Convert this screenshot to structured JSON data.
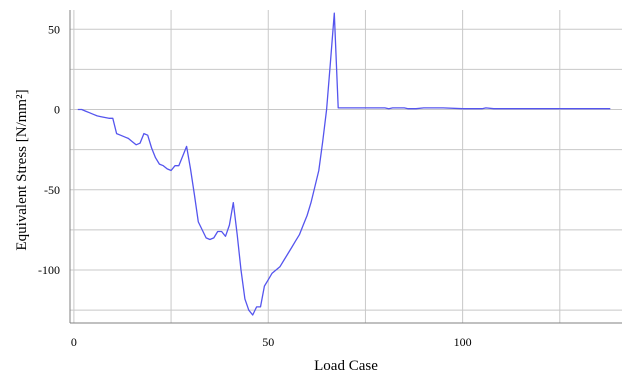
{
  "chart_data": {
    "type": "line",
    "title": "",
    "xlabel": "Load Case",
    "ylabel": "Equivalent Stress [N/mm²]",
    "xlim": [
      -1,
      141
    ],
    "ylim": [
      -133,
      62
    ],
    "x_ticks": [
      0,
      50,
      100
    ],
    "y_ticks": [
      50,
      0,
      -50,
      -100
    ],
    "x_minor_ticks": [
      25,
      75,
      125
    ],
    "y_minor_ticks": [
      25,
      -25,
      -75,
      -125
    ],
    "grid": true,
    "legend": "none",
    "colors": {
      "line": "#5555ee",
      "grid": "#c8c8c8",
      "axis": "#808080",
      "background": "#ffffff"
    },
    "series": [
      {
        "x": [
          1,
          2,
          3,
          4,
          5,
          6,
          7,
          8,
          9,
          10,
          11,
          12,
          13,
          14,
          15,
          16,
          17,
          18,
          19,
          20,
          21,
          22,
          23,
          24,
          25,
          26,
          27,
          28,
          29,
          30,
          31,
          32,
          33,
          34,
          35,
          36,
          37,
          38,
          39,
          40,
          41,
          42,
          43,
          44,
          45,
          46,
          47,
          48,
          49,
          50,
          51,
          52,
          53,
          54,
          55,
          56,
          57,
          58,
          59,
          60,
          61,
          62,
          63,
          64,
          65,
          66,
          67,
          68,
          69,
          70,
          71,
          72,
          73,
          74,
          75,
          80,
          81,
          82,
          85,
          86,
          88,
          90,
          95,
          100,
          105,
          106,
          108,
          110,
          115,
          120,
          125,
          130,
          135,
          138
        ],
        "y": [
          0,
          0,
          -1,
          -2,
          -3,
          -4,
          -4.5,
          -5,
          -5.5,
          -5.5,
          -15,
          -16,
          -17,
          -18,
          -20,
          -22,
          -21,
          -15,
          -16,
          -24,
          -30,
          -34,
          -35,
          -37,
          -38,
          -35,
          -35,
          -29,
          -23,
          -37,
          -53,
          -70,
          -75,
          -80,
          -81,
          -80,
          -76,
          -76,
          -79,
          -72,
          -58,
          -78,
          -100,
          -118,
          -125,
          -128,
          -123,
          -123,
          -110,
          -106,
          -102,
          -100,
          -98,
          -94,
          -90,
          -86,
          -82,
          -78,
          -72,
          -66,
          -58,
          -48,
          -38,
          -20,
          0,
          30,
          60,
          1,
          1,
          1,
          1,
          1,
          1,
          1,
          1,
          1,
          0.5,
          1,
          1,
          0.5,
          0.5,
          1,
          1,
          0.5,
          0.5,
          1,
          0.5,
          0.5,
          0.5,
          0.5,
          0.5,
          0.5,
          0.5,
          0.5
        ]
      }
    ]
  }
}
